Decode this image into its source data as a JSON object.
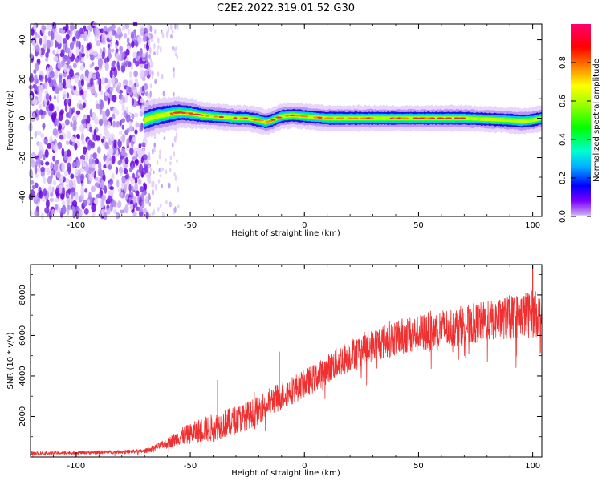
{
  "title": "C2E2.2022.319.01.52.G30",
  "colors": {
    "snr_line": "#f03030",
    "background": "#ffffff",
    "axis": "#000000"
  },
  "chart_data": [
    {
      "type": "heatmap",
      "xlabel": "Height of straight line (km)",
      "ylabel": "Frequency (Hz)",
      "xlim": [
        -120,
        104
      ],
      "ylim": [
        -50,
        48
      ],
      "xticks": [
        -100,
        -50,
        0,
        50,
        100
      ],
      "xtick_labels": [
        "-100",
        "-50",
        "0",
        "50",
        "100"
      ],
      "yticks": [
        -40,
        -20,
        0,
        20,
        40
      ],
      "ytick_labels": [
        "-40",
        "-20",
        "0",
        "20",
        "40"
      ],
      "colorscale": "hsv (violet→blue→cyan→green→yellow→red→magenta)",
      "colorbar": {
        "label": "Normalized spectral amplitude",
        "range": [
          0,
          1
        ],
        "ticks": [
          0.0,
          0.2,
          0.4,
          0.6,
          0.8
        ],
        "tick_labels": [
          "0.0",
          "0.2",
          "0.4",
          "0.6",
          "0.8"
        ]
      },
      "noise_region_x": [
        -120,
        -68
      ],
      "scattered_region_x": [
        -68,
        -55
      ],
      "center_line": {
        "x": [
          -70,
          -65,
          -60,
          -55,
          -50,
          -45,
          -40,
          -35,
          -30,
          -25,
          -20,
          -17,
          -15,
          -12,
          -10,
          -5,
          0,
          5,
          10,
          20,
          30,
          40,
          50,
          60,
          70,
          80,
          90,
          95,
          100,
          104
        ],
        "y": [
          -1,
          1,
          2,
          3,
          2.5,
          1.5,
          1,
          0.5,
          0,
          0,
          -1,
          -2,
          -1.5,
          0,
          1,
          1.5,
          1,
          0.5,
          0,
          0,
          0,
          0,
          0,
          0,
          0,
          -0.5,
          -1,
          -1.5,
          -1,
          0
        ]
      }
    },
    {
      "type": "line",
      "xlabel": "Height of straight line (km)",
      "ylabel": "SNR (10 * v/v)",
      "xlim": [
        -120,
        104
      ],
      "ylim": [
        0,
        9500
      ],
      "xticks": [
        -100,
        -50,
        0,
        50,
        100
      ],
      "xtick_labels": [
        "-100",
        "-50",
        "0",
        "50",
        "100"
      ],
      "yticks": [
        2000,
        4000,
        6000,
        8000
      ],
      "ytick_labels": [
        "2000",
        "4000",
        "6000",
        "8000"
      ],
      "series": [
        {
          "x": [
            -120,
            -110,
            -100,
            -90,
            -80,
            -70,
            -65,
            -60,
            -55,
            -50,
            -45,
            -40,
            -35,
            -30,
            -25,
            -20,
            -15,
            -10,
            -5,
            0,
            5,
            10,
            15,
            20,
            25,
            30,
            35,
            40,
            45,
            50,
            55,
            60,
            65,
            70,
            75,
            80,
            85,
            90,
            95,
            100,
            104
          ],
          "values": [
            200,
            200,
            220,
            240,
            260,
            300,
            500,
            700,
            1000,
            1200,
            1400,
            1500,
            1700,
            1900,
            2100,
            2400,
            2800,
            3100,
            3400,
            3700,
            4000,
            4400,
            4800,
            5100,
            5400,
            5600,
            5800,
            6000,
            6100,
            6200,
            6300,
            6400,
            6500,
            6600,
            6700,
            6800,
            6900,
            7000,
            7100,
            7200,
            7100
          ],
          "noise_amplitude": [
            80,
            80,
            80,
            90,
            90,
            100,
            150,
            250,
            400,
            500,
            600,
            700,
            700,
            700,
            700,
            700,
            700,
            700,
            700,
            700,
            700,
            700,
            800,
            800,
            800,
            800,
            900,
            900,
            900,
            900,
            1000,
            1000,
            1000,
            1000,
            1000,
            1000,
            1000,
            1100,
            1100,
            1200,
            1000
          ]
        }
      ],
      "spikes": [
        {
          "x": -38,
          "y": 3800
        },
        {
          "x": -22,
          "y": 3200
        },
        {
          "x": -11,
          "y": 5200
        },
        {
          "x": 100,
          "y": 9500
        }
      ]
    }
  ]
}
